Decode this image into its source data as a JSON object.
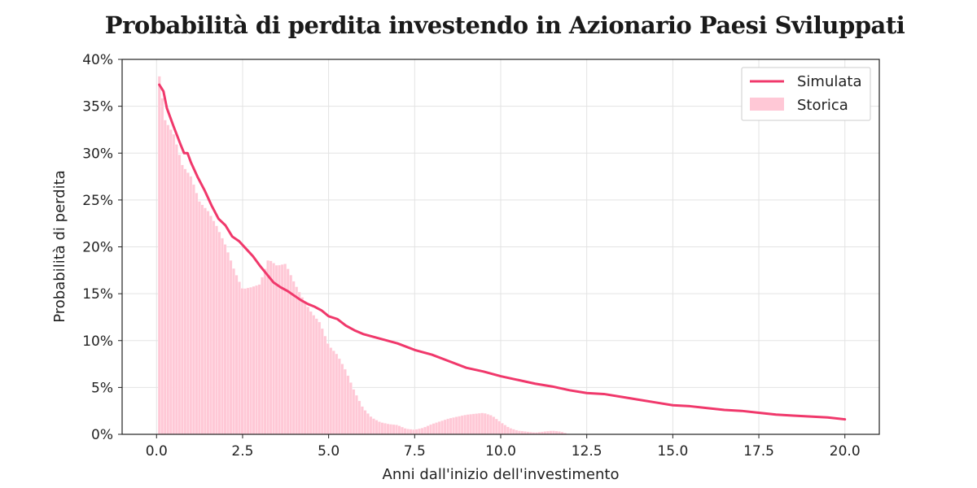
{
  "chart_data": {
    "type": "line",
    "title": "Probabilità di perdita investendo in Azionario Paesi Sviluppati",
    "xlabel": "Anni dall'inizio dell'investimento",
    "ylabel": "Probabilità di perdita",
    "xlim": [
      -1.0,
      21.0
    ],
    "ylim": [
      0,
      40
    ],
    "xticks": [
      0.0,
      2.5,
      5.0,
      7.5,
      10.0,
      12.5,
      15.0,
      17.5,
      20.0
    ],
    "xtick_labels": [
      "0.0",
      "2.5",
      "5.0",
      "7.5",
      "10.0",
      "12.5",
      "15.0",
      "17.5",
      "20.0"
    ],
    "yticks": [
      0,
      5,
      10,
      15,
      20,
      25,
      30,
      35,
      40
    ],
    "ytick_labels": [
      "0%",
      "5%",
      "10%",
      "15%",
      "20%",
      "25%",
      "30%",
      "35%",
      "40%"
    ],
    "grid": true,
    "legend_position": "top-right",
    "colors": {
      "simulata": "#f0386b",
      "storica": "#ffc8d6"
    },
    "series": [
      {
        "name": "Simulata",
        "kind": "line",
        "x": [
          0.08,
          0.2,
          0.3,
          0.5,
          0.7,
          0.8,
          0.9,
          1.0,
          1.2,
          1.4,
          1.6,
          1.8,
          2.0,
          2.2,
          2.4,
          2.6,
          2.8,
          3.0,
          3.2,
          3.4,
          3.6,
          3.8,
          4.0,
          4.2,
          4.4,
          4.6,
          4.8,
          5.0,
          5.25,
          5.5,
          5.75,
          6.0,
          6.5,
          7.0,
          7.5,
          8.0,
          8.5,
          9.0,
          9.5,
          10.0,
          10.5,
          11.0,
          11.5,
          12.0,
          12.5,
          13.0,
          13.5,
          14.0,
          14.5,
          15.0,
          15.5,
          16.0,
          16.5,
          17.0,
          17.5,
          18.0,
          18.5,
          19.0,
          19.5,
          20.0
        ],
        "y": [
          37.3,
          36.6,
          34.8,
          32.8,
          30.9,
          30.0,
          30.0,
          29.0,
          27.4,
          26.0,
          24.4,
          23.0,
          22.3,
          21.1,
          20.6,
          19.8,
          19.0,
          18.0,
          17.1,
          16.2,
          15.7,
          15.3,
          14.8,
          14.3,
          13.9,
          13.6,
          13.2,
          12.6,
          12.3,
          11.6,
          11.1,
          10.7,
          10.2,
          9.7,
          9.0,
          8.5,
          7.8,
          7.1,
          6.7,
          6.2,
          5.8,
          5.4,
          5.1,
          4.7,
          4.4,
          4.3,
          4.0,
          3.7,
          3.4,
          3.1,
          3.0,
          2.8,
          2.6,
          2.5,
          2.3,
          2.1,
          2.0,
          1.9,
          1.8,
          1.6
        ]
      },
      {
        "name": "Storica",
        "kind": "bar",
        "bar_width": 0.083,
        "x": [
          0.083,
          0.25,
          0.5,
          0.75,
          1.0,
          1.25,
          1.5,
          1.75,
          2.0,
          2.25,
          2.5,
          2.75,
          3.0,
          3.25,
          3.5,
          3.75,
          4.0,
          4.25,
          4.5,
          4.75,
          5.0,
          5.25,
          5.5,
          5.75,
          6.0,
          6.25,
          6.5,
          6.75,
          7.0,
          7.25,
          7.5,
          7.75,
          8.0,
          8.25,
          8.5,
          8.75,
          9.0,
          9.25,
          9.5,
          9.75,
          10.0,
          10.25,
          10.5,
          10.75,
          11.0,
          11.25,
          11.5,
          11.75,
          12.0
        ],
        "y": [
          38.2,
          33.5,
          32.0,
          28.7,
          27.5,
          24.8,
          23.8,
          22.2,
          20.2,
          17.6,
          15.5,
          15.7,
          16.0,
          18.7,
          18.0,
          18.2,
          16.2,
          14.5,
          13.0,
          11.9,
          9.5,
          8.5,
          6.8,
          4.6,
          2.8,
          1.8,
          1.3,
          1.1,
          1.0,
          0.6,
          0.5,
          0.7,
          1.1,
          1.4,
          1.7,
          1.9,
          2.1,
          2.2,
          2.3,
          2.0,
          1.3,
          0.7,
          0.4,
          0.3,
          0.2,
          0.3,
          0.4,
          0.3,
          0.0
        ]
      }
    ]
  }
}
